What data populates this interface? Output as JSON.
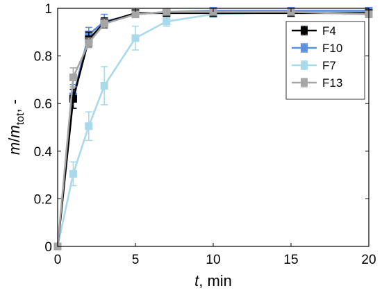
{
  "chart_data": {
    "type": "line",
    "title": "",
    "xlabel": {
      "var": "t",
      "rest": ", min"
    },
    "ylabel": {
      "var1": "m",
      "slash": "/",
      "var2": "m",
      "sub": "tot",
      "rest": ", -"
    },
    "xlim": [
      0,
      20
    ],
    "ylim": [
      0,
      1
    ],
    "xticks": [
      0,
      5,
      10,
      15,
      20
    ],
    "xtick_labels": [
      "0",
      "5",
      "10",
      "15",
      "20"
    ],
    "yticks": [
      0,
      0.2,
      0.4,
      0.6,
      0.8,
      1
    ],
    "ytick_labels": [
      "0",
      "0.2",
      "0.4",
      "0.6",
      "0.8",
      "1"
    ],
    "grid": false,
    "legend_position": "top-right",
    "series": [
      {
        "name": "F4",
        "color": "#000000",
        "x": [
          0,
          1,
          2,
          3,
          5,
          7,
          10,
          15,
          20
        ],
        "y": [
          0,
          0.62,
          0.87,
          0.94,
          0.98,
          0.98,
          0.98,
          0.98,
          0.98
        ],
        "err": [
          0,
          0.04,
          0.03,
          0.02,
          0.01,
          0.01,
          0.01,
          0.005,
          0.005
        ]
      },
      {
        "name": "F10",
        "color": "#5b8fe0",
        "x": [
          0,
          1,
          2,
          3,
          5,
          7,
          10,
          15,
          20
        ],
        "y": [
          0,
          0.63,
          0.89,
          0.945,
          0.975,
          0.985,
          0.99,
          0.99,
          0.99
        ],
        "err": [
          0,
          0.05,
          0.03,
          0.03,
          0.01,
          0.01,
          0.005,
          0.005,
          0.005
        ]
      },
      {
        "name": "F7",
        "color": "#a9d9ea",
        "x": [
          0,
          1,
          2,
          3,
          5,
          7,
          10,
          15,
          20
        ],
        "y": [
          0,
          0.305,
          0.505,
          0.675,
          0.875,
          0.945,
          0.975,
          0.985,
          0.985
        ],
        "err": [
          0,
          0.05,
          0.06,
          0.08,
          0.05,
          0.02,
          0.01,
          0.005,
          0.005
        ]
      },
      {
        "name": "F13",
        "color": "#a6a6a6",
        "x": [
          0,
          1,
          2,
          3,
          5,
          7,
          10,
          15,
          20
        ],
        "y": [
          0,
          0.71,
          0.855,
          0.935,
          0.975,
          0.985,
          0.985,
          0.985,
          0.975
        ],
        "err": [
          0,
          0.04,
          0.02,
          0.02,
          0.01,
          0.005,
          0.005,
          0.005,
          0.005
        ]
      }
    ]
  }
}
